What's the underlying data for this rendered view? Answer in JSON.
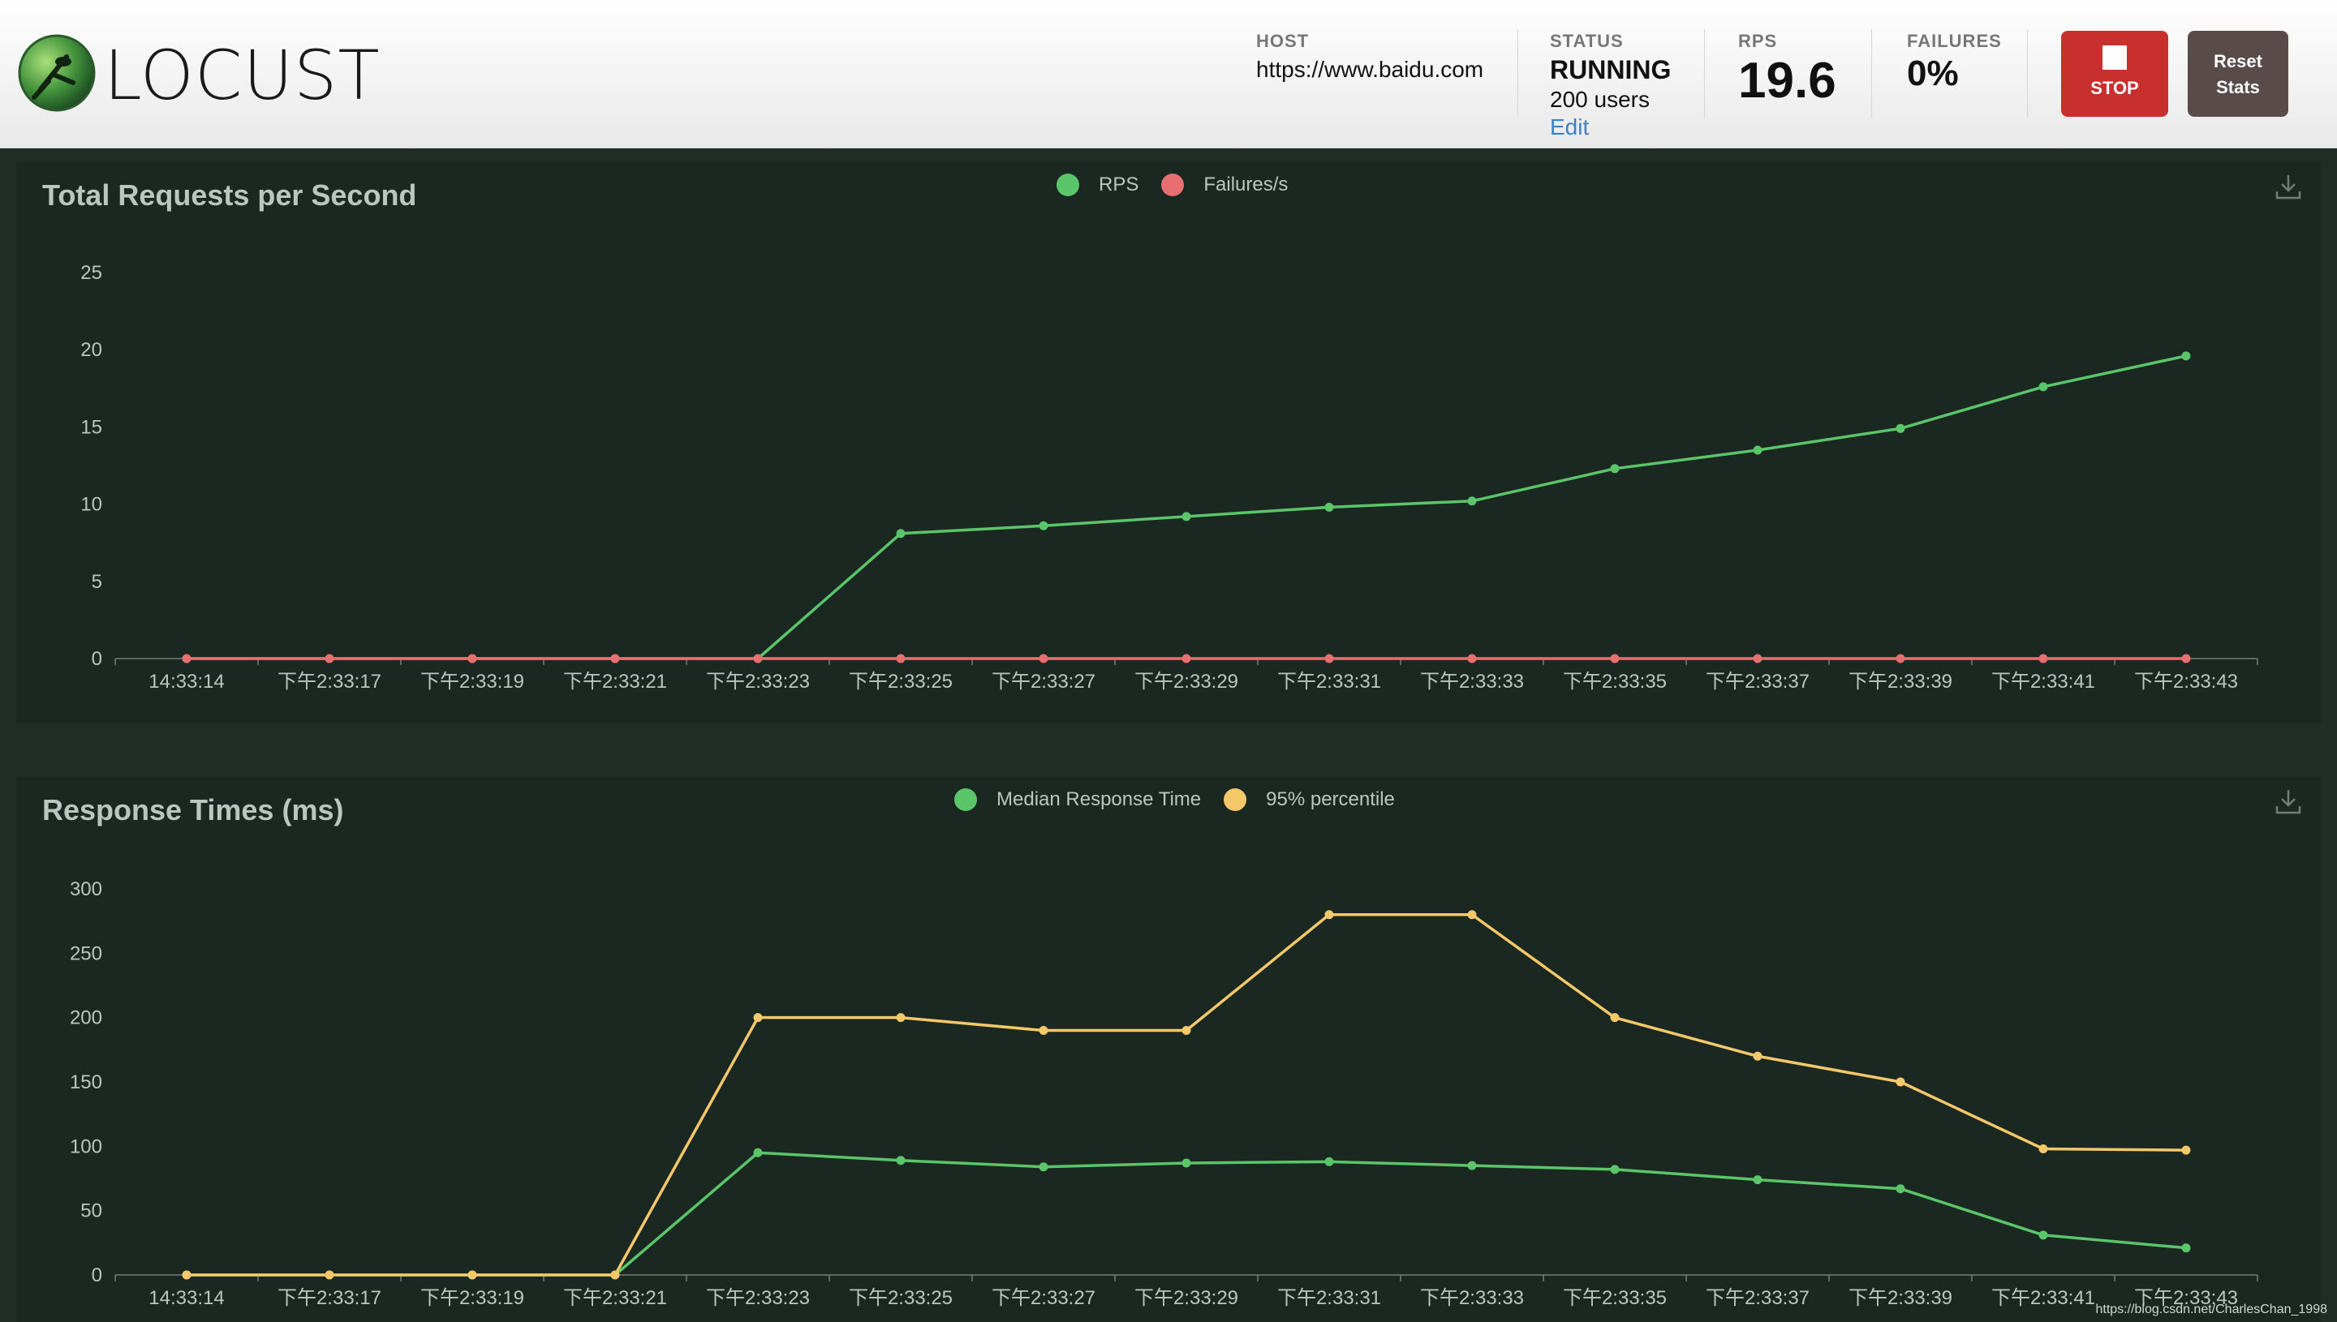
{
  "header": {
    "logo_text": "LOCUST",
    "host_label": "HOST",
    "host_value": "https://www.baidu.com",
    "status_label": "STATUS",
    "status_value": "RUNNING",
    "users_value": "200 users",
    "edit_label": "Edit",
    "rps_label": "RPS",
    "rps_value": "19.6",
    "failures_label": "FAILURES",
    "failures_value": "0%",
    "stop_label": "STOP",
    "reset_label_1": "Reset",
    "reset_label_2": "Stats"
  },
  "colors": {
    "green": "#5bc56a",
    "red": "#e86f6f",
    "yellow": "#f5c86a",
    "stop": "#c8302d"
  },
  "watermark": "https://blog.csdn.net/CharlesChan_1998",
  "chart_data": [
    {
      "type": "line",
      "title": "Total Requests per Second",
      "x": [
        "14:33:14",
        "下午2:33:17",
        "下午2:33:19",
        "下午2:33:21",
        "下午2:33:23",
        "下午2:33:25",
        "下午2:33:27",
        "下午2:33:29",
        "下午2:33:31",
        "下午2:33:33",
        "下午2:33:35",
        "下午2:33:37",
        "下午2:33:39",
        "下午2:33:41",
        "下午2:33:43"
      ],
      "series": [
        {
          "name": "RPS",
          "color": "#5bc56a",
          "values": [
            0,
            0,
            0,
            0,
            0,
            8.1,
            8.6,
            9.2,
            9.8,
            10.2,
            12.3,
            13.5,
            14.9,
            17.6,
            19.6
          ]
        },
        {
          "name": "Failures/s",
          "color": "#e86f6f",
          "values": [
            0,
            0,
            0,
            0,
            0,
            0,
            0,
            0,
            0,
            0,
            0,
            0,
            0,
            0,
            0
          ]
        }
      ],
      "yticks": [
        0,
        5,
        10,
        15,
        20,
        25
      ],
      "ylim": [
        0,
        25
      ],
      "legend": "top-center"
    },
    {
      "type": "line",
      "title": "Response Times (ms)",
      "x": [
        "14:33:14",
        "下午2:33:17",
        "下午2:33:19",
        "下午2:33:21",
        "下午2:33:23",
        "下午2:33:25",
        "下午2:33:27",
        "下午2:33:29",
        "下午2:33:31",
        "下午2:33:33",
        "下午2:33:35",
        "下午2:33:37",
        "下午2:33:39",
        "下午2:33:41",
        "下午2:33:43"
      ],
      "series": [
        {
          "name": "Median Response Time",
          "color": "#5bc56a",
          "values": [
            0,
            0,
            0,
            0,
            95,
            89,
            84,
            87,
            88,
            85,
            82,
            74,
            67,
            31,
            21
          ]
        },
        {
          "name": "95% percentile",
          "color": "#f5c86a",
          "values": [
            0,
            0,
            0,
            0,
            200,
            200,
            190,
            190,
            280,
            280,
            200,
            170,
            150,
            98,
            97
          ]
        }
      ],
      "yticks": [
        0,
        50,
        100,
        150,
        200,
        250,
        300
      ],
      "ylim": [
        0,
        300
      ],
      "legend": "top-center"
    }
  ]
}
